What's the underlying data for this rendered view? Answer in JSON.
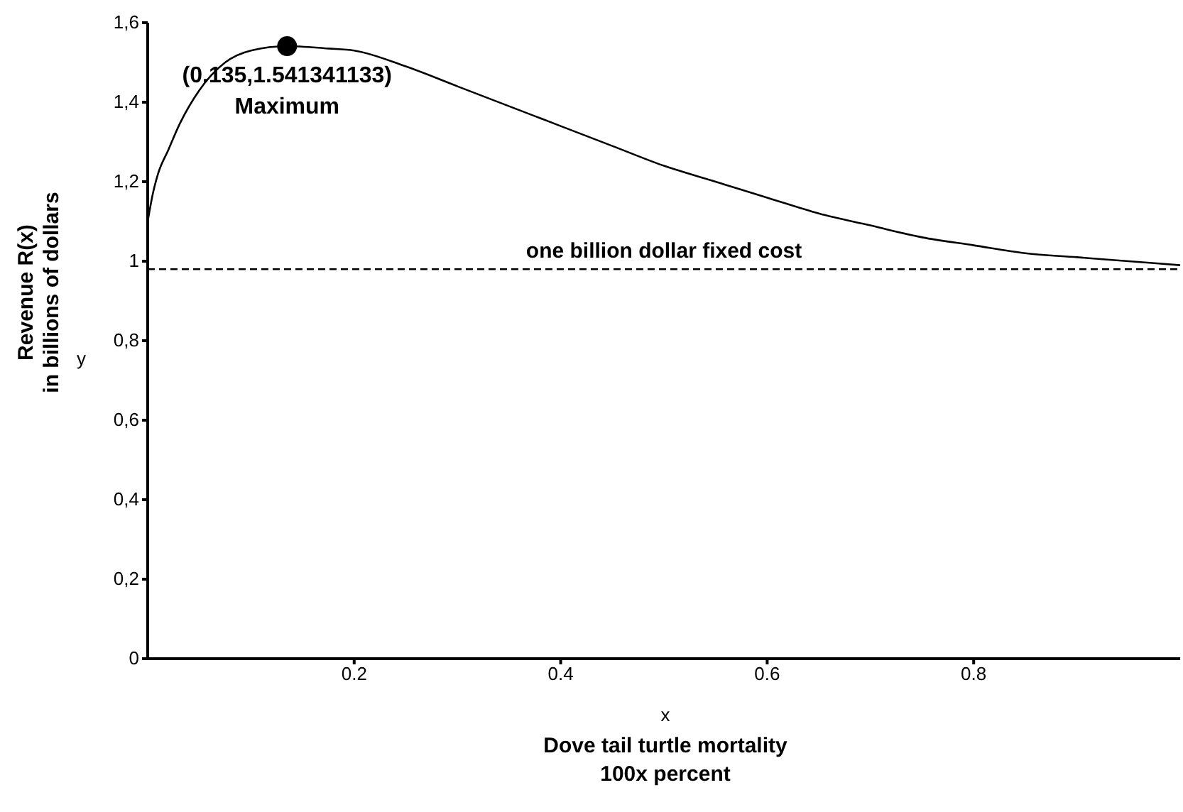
{
  "chart_data": {
    "type": "line",
    "xlabel": "Dove tail turtle mortality\n100x percent",
    "ylabel": "Revenue R(x)\nin billions of dollars",
    "xlim": [
      0,
      1
    ],
    "ylim": [
      0,
      1.6
    ],
    "xticks": [
      0.2,
      0.4,
      0.6,
      0.8
    ],
    "yticks": [
      0,
      {
        "value": 0.2,
        "label": "0,2"
      },
      {
        "value": 0.4,
        "label": "0,4"
      },
      {
        "value": 0.6,
        "label": "0,6"
      },
      {
        "value": 0.8,
        "label": "0,8"
      },
      1,
      {
        "value": 1.2,
        "label": "1,2"
      },
      {
        "value": 1.4,
        "label": "1,4"
      },
      {
        "value": 1.6,
        "label": "1,6"
      }
    ],
    "grid": false,
    "legend": false,
    "series": [
      {
        "color": "#000000",
        "marker": "none",
        "line_style": "solid",
        "x": [
          0,
          0.005,
          0.01,
          0.02,
          0.03,
          0.05,
          0.075,
          0.1,
          0.135,
          0.175,
          0.2,
          0.25,
          0.3,
          0.35,
          0.4,
          0.45,
          0.5,
          0.55,
          0.6,
          0.65,
          0.7,
          0.75,
          0.8,
          0.85,
          0.9,
          0.95,
          1.0
        ],
        "values": [
          1.1,
          1.17,
          1.22,
          1.28,
          1.34,
          1.43,
          1.5,
          1.53,
          1.541,
          1.535,
          1.53,
          1.49,
          1.44,
          1.39,
          1.34,
          1.29,
          1.24,
          1.2,
          1.16,
          1.12,
          1.09,
          1.06,
          1.04,
          1.02,
          1.01,
          1.0,
          0.99
        ]
      },
      {
        "type": "scatter",
        "color": "#000000",
        "marker": "circle",
        "x": [
          0.135
        ],
        "values": [
          1.541
        ]
      }
    ],
    "ref_lines": [
      {
        "axis": "y",
        "value": 0.98,
        "label": "one billion dollar fixed cost",
        "color": "#000000",
        "line_style": "dashed"
      }
    ],
    "annotations": [
      {
        "text": "(0.135,1.541341133)",
        "x": 0.135,
        "y": 1.541341133
      },
      {
        "text": "Maximum",
        "x": 0.135,
        "y": 1.541341133
      },
      "x",
      "y"
    ]
  }
}
